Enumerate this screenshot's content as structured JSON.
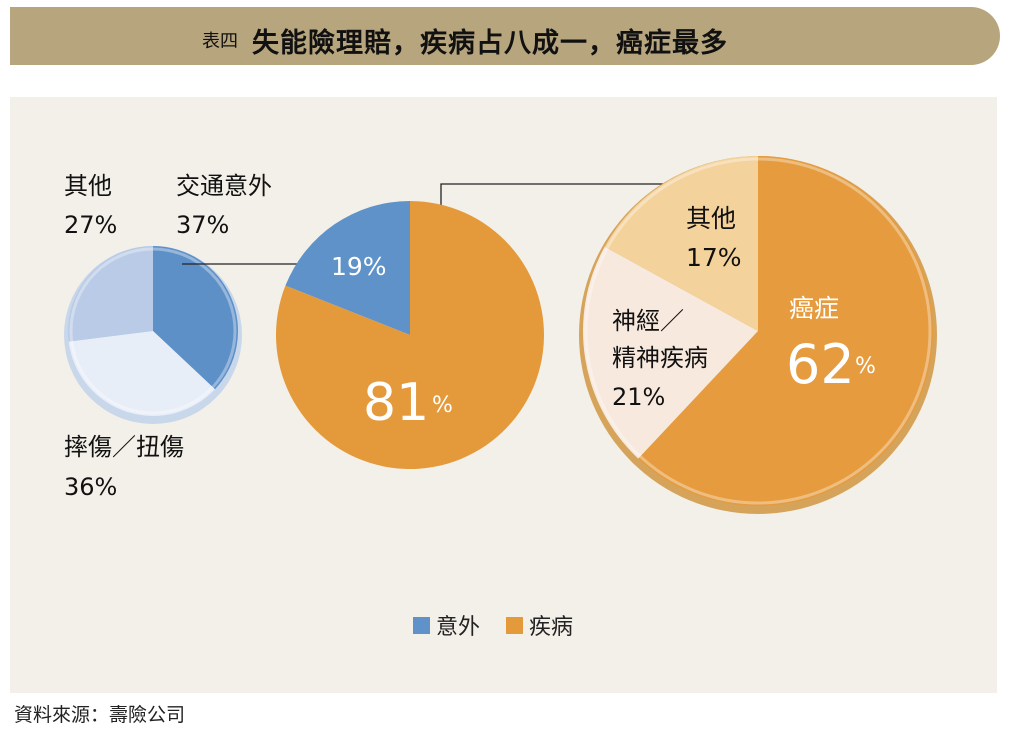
{
  "title": {
    "prefix": "表四",
    "main": "失能險理賠，疾病占八成一，癌症最多"
  },
  "chart_data": [
    {
      "type": "pie",
      "name": "意外 breakdown",
      "slices": [
        {
          "label": "交通意外",
          "value": 37,
          "value_text": "37%",
          "color": "#5e90c8"
        },
        {
          "label": "摔傷／扭傷",
          "value": 36,
          "value_text": "36%",
          "color": "#e8eef8"
        },
        {
          "label": "其他",
          "value": 27,
          "value_text": "27%",
          "color": "#b9cbe6"
        }
      ]
    },
    {
      "type": "pie",
      "name": "main",
      "slices": [
        {
          "label": "意外",
          "value": 19,
          "value_text": "19%",
          "color": "#5f92c8"
        },
        {
          "label": "疾病",
          "value": 81,
          "value_text": "81%",
          "color": "#e49a3b"
        }
      ]
    },
    {
      "type": "pie",
      "name": "疾病 breakdown",
      "slices": [
        {
          "label": "癌症",
          "value": 62,
          "value_text": "62%",
          "color": "#e59b3e"
        },
        {
          "label": "神經／精神疾病",
          "value": 21,
          "value_text": "21%",
          "color": "#f7e9dd"
        },
        {
          "label": "其他",
          "value": 17,
          "value_text": "17%",
          "color": "#f4d29b"
        }
      ]
    }
  ],
  "labels": {
    "small_other_name": "其他",
    "small_other_pct": "27%",
    "small_traffic_name": "交通意外",
    "small_traffic_pct": "37%",
    "small_fall_name": "摔傷／扭傷",
    "small_fall_pct": "36%",
    "main_accident_pct": "19%",
    "main_disease_num": "81",
    "pct_sign": "%",
    "right_other_name": "其他",
    "right_other_pct": "17%",
    "right_neuro_line1": "神經／",
    "right_neuro_line2": "精神疾病",
    "right_neuro_pct": "21%",
    "right_cancer_name": "癌症",
    "right_cancer_num": "62"
  },
  "legend": [
    {
      "label": "意外",
      "color": "#5f92c8"
    },
    {
      "label": "疾病",
      "color": "#e49a3b"
    }
  ],
  "source": "資料來源：壽險公司"
}
